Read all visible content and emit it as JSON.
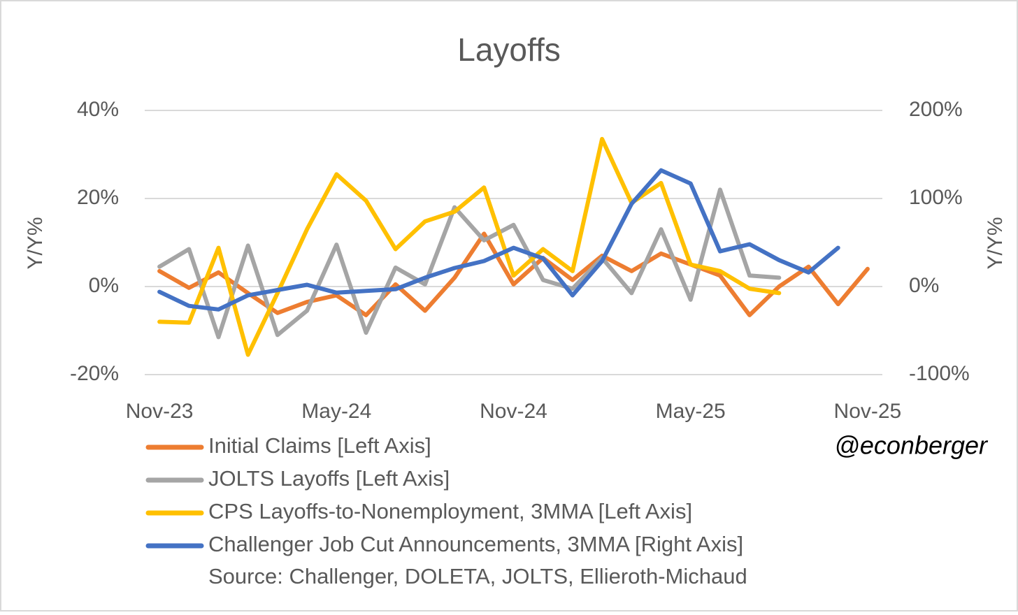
{
  "chart_data": {
    "type": "line",
    "title": "Layoffs",
    "y_label": "Y/Y%",
    "y2_label": "Y/Y%",
    "categories": [
      "Nov-23",
      null,
      null,
      null,
      null,
      null,
      "May-24",
      null,
      null,
      null,
      null,
      null,
      "Nov-24",
      null,
      null,
      null,
      null,
      null,
      "May-25",
      null,
      null,
      null,
      null,
      null,
      "Nov-25"
    ],
    "ylim": [
      -20,
      40
    ],
    "yticks": [
      {
        "value": -20,
        "label": "-20%"
      },
      {
        "value": 0,
        "label": "0%"
      },
      {
        "value": 20,
        "label": "20%"
      },
      {
        "value": 40,
        "label": "40%"
      }
    ],
    "y2lim": [
      -100,
      200
    ],
    "y2ticks": [
      {
        "value": -100,
        "label": "-100%"
      },
      {
        "value": 0,
        "label": "0%"
      },
      {
        "value": 100,
        "label": "100%"
      },
      {
        "value": 200,
        "label": "200%"
      }
    ],
    "grid": true,
    "legend": "bottom",
    "series": [
      {
        "name": "Initial Claims [Left Axis]",
        "color": "#ed7d31",
        "values": [
          3.5,
          -0.3,
          3.2,
          -1.5,
          -6,
          -3.5,
          -2,
          -6.5,
          0.5,
          -5.5,
          2,
          12,
          0.5,
          6.5,
          1.5,
          7,
          3.5,
          7.5,
          5,
          2.5,
          -6.5,
          0,
          4.5,
          -4,
          4
        ]
      },
      {
        "name": "JOLTS Layoffs [Left Axis]",
        "color": "#a5a5a5",
        "values": [
          4.5,
          8.5,
          -11.5,
          9.3,
          -11,
          -5.5,
          9.5,
          -10.5,
          4.3,
          0.5,
          18,
          10.5,
          14,
          1.5,
          -0.5,
          6.5,
          -1.5,
          13,
          -3,
          22,
          2.5,
          2,
          null,
          null,
          null
        ]
      },
      {
        "name": "CPS Layoffs-to-Nonemployment, 3MMA [Left Axis]",
        "color": "#ffc000",
        "values": [
          -8,
          -8.2,
          8.8,
          -15.5,
          -1.5,
          13,
          25.5,
          19.5,
          8.5,
          14.8,
          17,
          22.5,
          2.5,
          8.5,
          3.5,
          33.5,
          19,
          23.5,
          5,
          3.5,
          -0.5,
          -1.5,
          null,
          null,
          null
        ]
      },
      {
        "name": "Challenger Job Cut Announcements, 3MMA [Right Axis]",
        "color": "#4472c4",
        "axis": "y2",
        "values": [
          -6,
          -22,
          -26,
          -10,
          -4,
          2,
          -7,
          -5,
          -3,
          10,
          21,
          29,
          44,
          32,
          -10,
          29,
          94,
          132,
          117,
          40,
          48,
          30,
          16,
          44,
          null
        ]
      }
    ],
    "source": "Source: Challenger, DOLETA, JOLTS, Ellieroth-Michaud",
    "watermark": "@econberger"
  }
}
